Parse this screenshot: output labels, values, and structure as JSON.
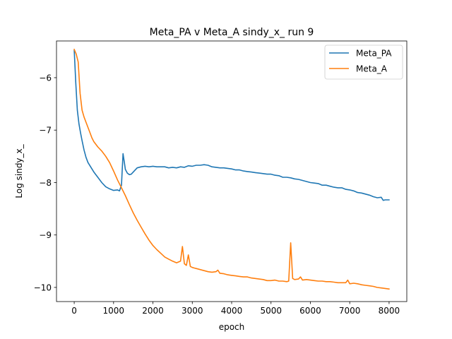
{
  "chart_data": {
    "type": "line",
    "title": "Meta_PA v Meta_A sindy_x_ run 9",
    "xlabel": "epoch",
    "ylabel": "Log sindy_x_",
    "xlim": [
      -450,
      8450
    ],
    "ylim": [
      -10.27,
      -5.3
    ],
    "xticks": [
      0,
      1000,
      2000,
      3000,
      4000,
      5000,
      6000,
      7000,
      8000
    ],
    "xtick_labels": [
      "0",
      "1000",
      "2000",
      "3000",
      "4000",
      "5000",
      "6000",
      "7000",
      "8000"
    ],
    "yticks": [
      -6,
      -7,
      -8,
      -9,
      -10
    ],
    "ytick_labels": [
      "−6",
      "−7",
      "−8",
      "−9",
      "−10"
    ],
    "grid": false,
    "legend_position": "top-right",
    "series": [
      {
        "name": "Meta_PA",
        "color": "#1f77b4",
        "x": [
          0,
          40,
          80,
          120,
          160,
          200,
          250,
          300,
          350,
          400,
          500,
          600,
          700,
          800,
          900,
          1000,
          1100,
          1150,
          1200,
          1240,
          1270,
          1300,
          1350,
          1400,
          1450,
          1500,
          1550,
          1600,
          1700,
          1800,
          1900,
          2000,
          2100,
          2200,
          2300,
          2400,
          2500,
          2600,
          2700,
          2800,
          2900,
          3000,
          3100,
          3200,
          3300,
          3400,
          3500,
          3600,
          3700,
          3800,
          3900,
          4000,
          4100,
          4200,
          4300,
          4400,
          4500,
          4600,
          4700,
          4800,
          4900,
          5000,
          5100,
          5200,
          5300,
          5400,
          5500,
          5600,
          5700,
          5800,
          5900,
          6000,
          6100,
          6200,
          6300,
          6400,
          6500,
          6600,
          6700,
          6800,
          6900,
          7000,
          7100,
          7200,
          7300,
          7400,
          7500,
          7600,
          7700,
          7800,
          7850,
          7900,
          8000
        ],
        "y": [
          -5.48,
          -6.1,
          -6.62,
          -6.88,
          -7.05,
          -7.2,
          -7.38,
          -7.52,
          -7.62,
          -7.68,
          -7.8,
          -7.9,
          -8.0,
          -8.08,
          -8.12,
          -8.15,
          -8.14,
          -8.16,
          -8.05,
          -7.45,
          -7.6,
          -7.75,
          -7.82,
          -7.85,
          -7.84,
          -7.8,
          -7.76,
          -7.72,
          -7.7,
          -7.69,
          -7.7,
          -7.69,
          -7.7,
          -7.7,
          -7.7,
          -7.72,
          -7.71,
          -7.72,
          -7.7,
          -7.71,
          -7.68,
          -7.69,
          -7.67,
          -7.67,
          -7.66,
          -7.67,
          -7.7,
          -7.71,
          -7.72,
          -7.72,
          -7.73,
          -7.74,
          -7.76,
          -7.76,
          -7.78,
          -7.79,
          -7.8,
          -7.81,
          -7.82,
          -7.83,
          -7.84,
          -7.84,
          -7.86,
          -7.87,
          -7.9,
          -7.9,
          -7.91,
          -7.93,
          -7.94,
          -7.96,
          -7.98,
          -8.0,
          -8.01,
          -8.02,
          -8.05,
          -8.05,
          -8.07,
          -8.09,
          -8.1,
          -8.1,
          -8.13,
          -8.14,
          -8.16,
          -8.19,
          -8.2,
          -8.22,
          -8.24,
          -8.27,
          -8.29,
          -8.28,
          -8.34,
          -8.33,
          -8.33
        ]
      },
      {
        "name": "Meta_A",
        "color": "#ff7f0e",
        "x": [
          0,
          50,
          100,
          150,
          200,
          250,
          300,
          350,
          400,
          450,
          500,
          600,
          700,
          800,
          900,
          1000,
          1100,
          1200,
          1300,
          1400,
          1500,
          1600,
          1700,
          1800,
          1900,
          2000,
          2100,
          2200,
          2300,
          2400,
          2500,
          2600,
          2700,
          2750,
          2800,
          2850,
          2900,
          2950,
          3000,
          3050,
          3100,
          3200,
          3300,
          3400,
          3500,
          3600,
          3650,
          3700,
          3800,
          3900,
          4000,
          4100,
          4200,
          4300,
          4400,
          4500,
          4600,
          4700,
          4800,
          4900,
          5000,
          5100,
          5200,
          5300,
          5400,
          5450,
          5500,
          5550,
          5600,
          5700,
          5750,
          5800,
          5900,
          6000,
          6100,
          6200,
          6300,
          6400,
          6500,
          6600,
          6700,
          6800,
          6900,
          6950,
          7000,
          7100,
          7200,
          7300,
          7400,
          7500,
          7600,
          7700,
          7800,
          7900,
          8000
        ],
        "y": [
          -5.46,
          -5.55,
          -5.7,
          -6.3,
          -6.62,
          -6.75,
          -6.85,
          -6.95,
          -7.05,
          -7.15,
          -7.22,
          -7.32,
          -7.4,
          -7.5,
          -7.62,
          -7.78,
          -7.95,
          -8.1,
          -8.25,
          -8.42,
          -8.58,
          -8.72,
          -8.85,
          -8.98,
          -9.1,
          -9.2,
          -9.28,
          -9.35,
          -9.42,
          -9.46,
          -9.5,
          -9.53,
          -9.5,
          -9.22,
          -9.55,
          -9.58,
          -9.38,
          -9.6,
          -9.62,
          -9.63,
          -9.64,
          -9.66,
          -9.68,
          -9.7,
          -9.71,
          -9.7,
          -9.67,
          -9.73,
          -9.74,
          -9.76,
          -9.77,
          -9.78,
          -9.79,
          -9.8,
          -9.8,
          -9.82,
          -9.83,
          -9.84,
          -9.85,
          -9.87,
          -9.87,
          -9.86,
          -9.88,
          -9.88,
          -9.89,
          -9.88,
          -9.15,
          -9.83,
          -9.85,
          -9.84,
          -9.8,
          -9.86,
          -9.85,
          -9.86,
          -9.87,
          -9.88,
          -9.88,
          -9.89,
          -9.89,
          -9.9,
          -9.91,
          -9.91,
          -9.91,
          -9.86,
          -9.93,
          -9.92,
          -9.93,
          -9.95,
          -9.96,
          -9.97,
          -9.98,
          -10.0,
          -10.01,
          -10.02,
          -10.03
        ]
      }
    ]
  }
}
